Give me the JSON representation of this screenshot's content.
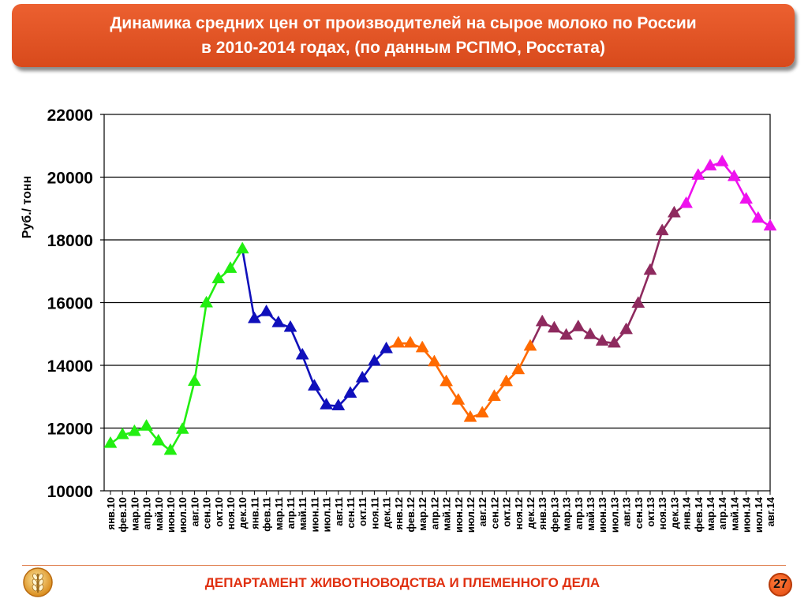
{
  "slide": {
    "title_line1": "Динамика средних цен от производителей на сырое молоко по России",
    "title_line2": "в 2010-2014 годах, (по данным РСПМО, Росстата)",
    "footer_text": "ДЕПАРТАМЕНТ ЖИВОТНОВОДСТВА И ПЛЕМЕННОГО ДЕЛА",
    "page_number": "27",
    "logo_icon": "wheat-ear-logo-icon"
  },
  "chart_data": {
    "type": "line",
    "ylabel": "Руб./ тонн",
    "ylim": [
      10000,
      22000
    ],
    "yticks": [
      10000,
      12000,
      14000,
      16000,
      18000,
      20000,
      22000
    ],
    "grid": true,
    "legend": "none",
    "categories": [
      "янв.10",
      "фев.10",
      "мар.10",
      "апр.10",
      "май.10",
      "июн.10",
      "июл.10",
      "авг.10",
      "сен.10",
      "окт.10",
      "ноя.10",
      "дек.10",
      "янв.11",
      "фев.11",
      "мар.11",
      "апр.11",
      "май.11",
      "июн.11",
      "июл.11",
      "авг.11",
      "сен.11",
      "окт.11",
      "ноя.11",
      "дек.11",
      "янв.12",
      "фев.12",
      "мар.12",
      "апр.12",
      "май.12",
      "июн.12",
      "июл.12",
      "авг.12",
      "сен.12",
      "окт.12",
      "ноя.12",
      "дек.12",
      "янв.13",
      "фер.13",
      "мар.13",
      "апр.13",
      "май.13",
      "июн.13",
      "июл.13",
      "авг.13",
      "сен.13",
      "окт.13",
      "ноя.13",
      "дек.13",
      "янв.14",
      "фев.14",
      "мар.14",
      "апр.14",
      "май.14",
      "июн.14",
      "июл.14",
      "авг.14"
    ],
    "values": [
      11500,
      11780,
      11880,
      12050,
      11580,
      11280,
      11950,
      13480,
      15980,
      16750,
      17080,
      17700,
      15480,
      15700,
      15350,
      15200,
      14320,
      13330,
      12730,
      12700,
      13100,
      13590,
      14120,
      14520,
      14700,
      14700,
      14550,
      14100,
      13470,
      12880,
      12330,
      12470,
      13000,
      13470,
      13850,
      14600,
      15380,
      15180,
      14950,
      15220,
      14970,
      14760,
      14700,
      15130,
      15970,
      17020,
      18280,
      18850,
      19150,
      20050,
      20350,
      20480,
      20010,
      19290,
      18680,
      18430
    ],
    "series": [
      {
        "year": "2010",
        "start": 0,
        "end": 11,
        "color": "#22ee11"
      },
      {
        "year": "2011",
        "start": 11,
        "end": 23,
        "color": "#1010bb"
      },
      {
        "year": "2012",
        "start": 23,
        "end": 35,
        "color": "#ff6a00"
      },
      {
        "year": "2013",
        "start": 35,
        "end": 48,
        "color": "#8e2a5e"
      },
      {
        "year": "2014",
        "start": 48,
        "end": 55,
        "color": "#ee11ee"
      }
    ],
    "marker_colors": {
      "2010": {
        "from": 0,
        "to": 11,
        "color": "#22ee11"
      },
      "2011": {
        "from": 12,
        "to": 23,
        "color": "#1010bb"
      },
      "2012": {
        "from": 24,
        "to": 35,
        "color": "#ff6a00"
      },
      "2013": {
        "from": 36,
        "to": 47,
        "color": "#8e2a5e"
      },
      "2014": {
        "from": 48,
        "to": 55,
        "color": "#ee11ee"
      }
    },
    "colors": {
      "axis": "#000000",
      "grid": "#000000",
      "title_bg": "#e3552a",
      "footer_text": "#e03010"
    }
  }
}
